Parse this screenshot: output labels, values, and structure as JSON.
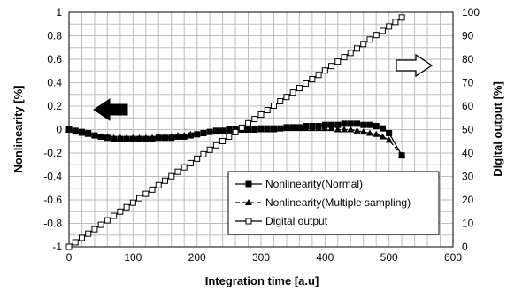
{
  "chart_data": {
    "type": "line",
    "xlabel": "Integration time [a.u]",
    "ylabel_left": "Nonlinearity [%]",
    "ylabel_right": "Digital output [%]",
    "xlim": [
      0,
      600
    ],
    "ylim_left": [
      -1,
      1
    ],
    "ylim_right": [
      0,
      100
    ],
    "x_ticks": [
      "0",
      "100",
      "200",
      "300",
      "400",
      "500",
      "600"
    ],
    "y_left_ticks": [
      "-1",
      "-0.8",
      "-0.6",
      "-0.4",
      "-0.2",
      "0",
      "0.2",
      "0.4",
      "0.6",
      "0.8",
      "1"
    ],
    "y_right_ticks": [
      "0",
      "10",
      "20",
      "30",
      "40",
      "50",
      "60",
      "70",
      "80",
      "90",
      "100"
    ],
    "grid": true,
    "legend_position": "bottom-right",
    "annotations": [
      "left-arrow: Nonlinearity axis",
      "right-arrow: Digital output axis"
    ],
    "series": [
      {
        "name": "Nonlinearity(Normal)",
        "axis": "left",
        "marker": "filled-square",
        "line": "solid",
        "color": "#000000",
        "x": [
          0,
          10,
          20,
          30,
          40,
          50,
          60,
          70,
          80,
          90,
          100,
          110,
          120,
          130,
          140,
          150,
          160,
          170,
          180,
          190,
          200,
          210,
          220,
          230,
          240,
          250,
          260,
          270,
          280,
          290,
          300,
          310,
          320,
          330,
          340,
          350,
          360,
          370,
          380,
          390,
          400,
          410,
          420,
          430,
          440,
          450,
          460,
          470,
          480,
          490,
          500,
          520
        ],
        "y": [
          0.0,
          -0.01,
          -0.02,
          -0.03,
          -0.05,
          -0.06,
          -0.07,
          -0.08,
          -0.08,
          -0.08,
          -0.08,
          -0.08,
          -0.08,
          -0.08,
          -0.07,
          -0.07,
          -0.07,
          -0.06,
          -0.06,
          -0.05,
          -0.04,
          -0.03,
          -0.02,
          -0.01,
          -0.01,
          0.0,
          0.0,
          0.0,
          0.0,
          0.0,
          0.01,
          0.01,
          0.01,
          0.01,
          0.02,
          0.02,
          0.02,
          0.03,
          0.03,
          0.03,
          0.04,
          0.04,
          0.04,
          0.05,
          0.05,
          0.05,
          0.04,
          0.04,
          0.03,
          0.01,
          -0.03,
          -0.22
        ]
      },
      {
        "name": "Nonlinearity(Multiple sampling)",
        "axis": "left",
        "marker": "filled-triangle",
        "line": "dashed",
        "color": "#000000",
        "x": [
          0,
          10,
          20,
          30,
          40,
          50,
          60,
          70,
          80,
          90,
          100,
          110,
          120,
          130,
          140,
          150,
          160,
          170,
          180,
          190,
          200,
          210,
          220,
          230,
          240,
          250,
          260,
          270,
          280,
          290,
          300,
          310,
          320,
          330,
          340,
          350,
          360,
          370,
          380,
          390,
          400,
          410,
          420,
          430,
          440,
          450,
          460,
          470,
          480,
          490,
          500,
          520
        ],
        "y": [
          0.0,
          -0.02,
          -0.03,
          -0.04,
          -0.05,
          -0.06,
          -0.06,
          -0.07,
          -0.07,
          -0.07,
          -0.07,
          -0.07,
          -0.07,
          -0.07,
          -0.06,
          -0.06,
          -0.06,
          -0.05,
          -0.05,
          -0.04,
          -0.04,
          -0.03,
          -0.02,
          -0.02,
          -0.01,
          -0.01,
          0.0,
          0.0,
          0.0,
          0.0,
          0.0,
          0.0,
          0.0,
          0.01,
          0.01,
          0.01,
          0.01,
          0.01,
          0.01,
          0.01,
          0.01,
          0.01,
          0.0,
          0.0,
          0.0,
          -0.01,
          -0.02,
          -0.03,
          -0.04,
          -0.06,
          -0.09,
          -0.22
        ]
      },
      {
        "name": "Digital output",
        "axis": "right",
        "marker": "open-square",
        "line": "solid",
        "color": "#000000",
        "x": [
          0,
          10,
          20,
          30,
          40,
          50,
          60,
          70,
          80,
          90,
          100,
          110,
          120,
          130,
          140,
          150,
          160,
          170,
          180,
          190,
          200,
          210,
          220,
          230,
          240,
          250,
          260,
          270,
          280,
          290,
          300,
          310,
          320,
          330,
          340,
          350,
          360,
          370,
          380,
          390,
          400,
          410,
          420,
          430,
          440,
          450,
          460,
          470,
          480,
          490,
          500,
          510,
          520
        ],
        "y": [
          0.0,
          1.9,
          3.8,
          5.6,
          7.5,
          9.4,
          11.3,
          13.2,
          15.0,
          16.9,
          18.8,
          20.7,
          22.6,
          24.4,
          26.3,
          28.2,
          30.1,
          32.0,
          33.9,
          35.7,
          37.6,
          39.5,
          41.4,
          43.3,
          45.1,
          47.0,
          48.9,
          50.8,
          52.7,
          54.5,
          56.4,
          58.3,
          60.2,
          62.1,
          63.9,
          65.8,
          67.7,
          69.6,
          71.5,
          73.3,
          75.2,
          77.1,
          79.0,
          80.9,
          82.7,
          84.6,
          86.5,
          88.4,
          90.3,
          92.1,
          94.0,
          95.9,
          97.8
        ]
      }
    ]
  }
}
